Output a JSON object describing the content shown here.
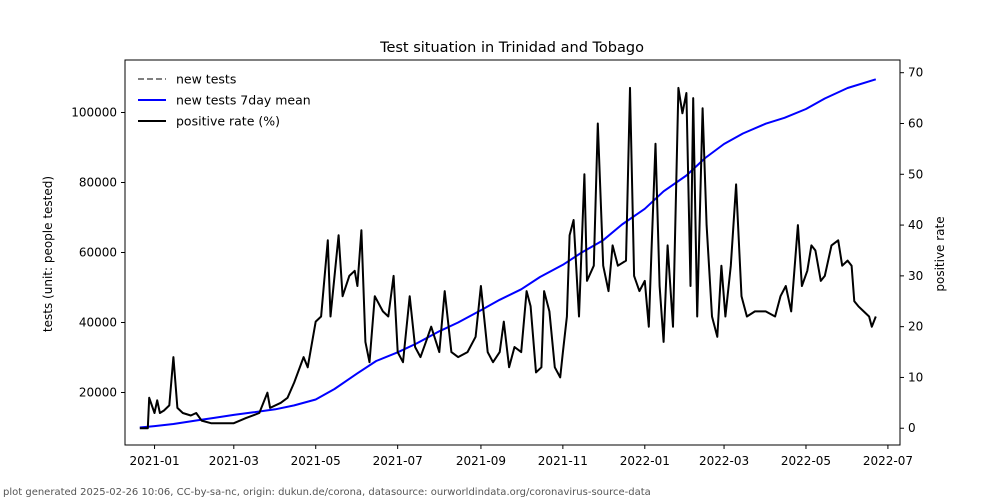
{
  "chart_data": {
    "type": "line",
    "title": "Test situation in Trinidad and Tobago",
    "ylabel_left": "tests (unit: people tested)",
    "ylabel_right": "positive rate",
    "x_ticks": [
      "2021-01",
      "2021-03",
      "2021-05",
      "2021-07",
      "2021-09",
      "2021-11",
      "2022-01",
      "2022-03",
      "2022-05",
      "2022-07"
    ],
    "x_range": [
      "2020-12-10",
      "2022-07-10"
    ],
    "y_left_ticks": [
      20000,
      40000,
      60000,
      80000,
      100000
    ],
    "y_left_range": [
      5000,
      115000
    ],
    "y_right_ticks": [
      0,
      10,
      20,
      30,
      40,
      50,
      60,
      70
    ],
    "y_right_range": [
      -3.3,
      72.5
    ],
    "grid": false,
    "legend_position": "top-left",
    "series": [
      {
        "name": "new tests",
        "axis": "left",
        "style": "dashed",
        "color": "#808080",
        "points": []
      },
      {
        "name": "new tests 7day mean",
        "axis": "left",
        "style": "solid",
        "color": "#0000ff",
        "points": [
          [
            "2020-12-21",
            10000
          ],
          [
            "2021-01-01",
            10400
          ],
          [
            "2021-01-15",
            11000
          ],
          [
            "2021-02-01",
            12000
          ],
          [
            "2021-02-15",
            12800
          ],
          [
            "2021-03-01",
            13600
          ],
          [
            "2021-03-15",
            14300
          ],
          [
            "2021-04-01",
            15200
          ],
          [
            "2021-04-15",
            16300
          ],
          [
            "2021-05-01",
            18000
          ],
          [
            "2021-05-15",
            21000
          ],
          [
            "2021-06-01",
            25500
          ],
          [
            "2021-06-15",
            29000
          ],
          [
            "2021-07-01",
            31500
          ],
          [
            "2021-07-15",
            34000
          ],
          [
            "2021-08-01",
            37500
          ],
          [
            "2021-08-15",
            40000
          ],
          [
            "2021-09-01",
            43500
          ],
          [
            "2021-09-15",
            46500
          ],
          [
            "2021-10-01",
            49500
          ],
          [
            "2021-10-15",
            53000
          ],
          [
            "2021-11-01",
            56500
          ],
          [
            "2021-11-15",
            60000
          ],
          [
            "2021-12-01",
            63500
          ],
          [
            "2021-12-15",
            68000
          ],
          [
            "2022-01-01",
            72500
          ],
          [
            "2022-01-15",
            77500
          ],
          [
            "2022-02-01",
            82000
          ],
          [
            "2022-02-15",
            87000
          ],
          [
            "2022-03-01",
            91000
          ],
          [
            "2022-03-15",
            94000
          ],
          [
            "2022-04-01",
            96800
          ],
          [
            "2022-04-15",
            98500
          ],
          [
            "2022-05-01",
            101000
          ],
          [
            "2022-05-15",
            104000
          ],
          [
            "2022-06-01",
            107000
          ],
          [
            "2022-06-22",
            109500
          ]
        ]
      },
      {
        "name": "positive rate (%)",
        "axis": "right",
        "style": "solid",
        "color": "#000000",
        "points": [
          [
            "2020-12-21",
            0
          ],
          [
            "2020-12-27",
            0
          ],
          [
            "2020-12-28",
            6
          ],
          [
            "2021-01-01",
            3
          ],
          [
            "2021-01-03",
            5.5
          ],
          [
            "2021-01-05",
            3
          ],
          [
            "2021-01-08",
            3.5
          ],
          [
            "2021-01-12",
            4.5
          ],
          [
            "2021-01-15",
            14
          ],
          [
            "2021-01-18",
            4
          ],
          [
            "2021-01-22",
            3
          ],
          [
            "2021-01-28",
            2.5
          ],
          [
            "2021-02-01",
            3
          ],
          [
            "2021-02-05",
            1.5
          ],
          [
            "2021-02-12",
            1
          ],
          [
            "2021-02-20",
            1
          ],
          [
            "2021-03-01",
            1
          ],
          [
            "2021-03-10",
            2
          ],
          [
            "2021-03-20",
            3
          ],
          [
            "2021-03-26",
            7
          ],
          [
            "2021-03-28",
            4
          ],
          [
            "2021-04-05",
            5
          ],
          [
            "2021-04-10",
            6
          ],
          [
            "2021-04-15",
            9
          ],
          [
            "2021-04-22",
            14
          ],
          [
            "2021-04-25",
            12
          ],
          [
            "2021-05-01",
            21
          ],
          [
            "2021-05-05",
            22
          ],
          [
            "2021-05-10",
            37
          ],
          [
            "2021-05-12",
            22
          ],
          [
            "2021-05-18",
            38
          ],
          [
            "2021-05-21",
            26
          ],
          [
            "2021-05-26",
            30
          ],
          [
            "2021-05-30",
            31
          ],
          [
            "2021-06-01",
            28
          ],
          [
            "2021-06-04",
            39
          ],
          [
            "2021-06-07",
            17
          ],
          [
            "2021-06-10",
            13
          ],
          [
            "2021-06-14",
            26
          ],
          [
            "2021-06-20",
            23
          ],
          [
            "2021-06-24",
            22
          ],
          [
            "2021-06-28",
            30
          ],
          [
            "2021-07-01",
            15
          ],
          [
            "2021-07-05",
            13
          ],
          [
            "2021-07-10",
            26
          ],
          [
            "2021-07-14",
            16
          ],
          [
            "2021-07-18",
            14
          ],
          [
            "2021-07-22",
            17
          ],
          [
            "2021-07-26",
            20
          ],
          [
            "2021-08-01",
            15
          ],
          [
            "2021-08-05",
            27
          ],
          [
            "2021-08-10",
            15
          ],
          [
            "2021-08-15",
            14
          ],
          [
            "2021-08-22",
            15
          ],
          [
            "2021-08-28",
            18
          ],
          [
            "2021-09-01",
            28
          ],
          [
            "2021-09-06",
            15
          ],
          [
            "2021-09-10",
            13
          ],
          [
            "2021-09-15",
            15
          ],
          [
            "2021-09-18",
            21
          ],
          [
            "2021-09-22",
            12
          ],
          [
            "2021-09-26",
            16
          ],
          [
            "2021-10-01",
            15
          ],
          [
            "2021-10-05",
            27
          ],
          [
            "2021-10-08",
            24
          ],
          [
            "2021-10-12",
            11
          ],
          [
            "2021-10-16",
            12
          ],
          [
            "2021-10-18",
            27
          ],
          [
            "2021-10-22",
            23
          ],
          [
            "2021-10-26",
            12
          ],
          [
            "2021-10-30",
            10
          ],
          [
            "2021-11-01",
            15
          ],
          [
            "2021-11-04",
            22
          ],
          [
            "2021-11-06",
            38
          ],
          [
            "2021-11-09",
            41
          ],
          [
            "2021-11-13",
            22
          ],
          [
            "2021-11-17",
            50
          ],
          [
            "2021-11-19",
            29
          ],
          [
            "2021-11-24",
            32
          ],
          [
            "2021-11-27",
            60
          ],
          [
            "2021-12-01",
            32
          ],
          [
            "2021-12-05",
            27
          ],
          [
            "2021-12-08",
            36
          ],
          [
            "2021-12-12",
            32
          ],
          [
            "2021-12-18",
            33
          ],
          [
            "2021-12-21",
            67
          ],
          [
            "2021-12-24",
            30
          ],
          [
            "2021-12-28",
            27
          ],
          [
            "2022-01-01",
            29
          ],
          [
            "2022-01-04",
            20
          ],
          [
            "2022-01-06",
            35
          ],
          [
            "2022-01-09",
            56
          ],
          [
            "2022-01-12",
            28
          ],
          [
            "2022-01-15",
            17
          ],
          [
            "2022-01-18",
            36
          ],
          [
            "2022-01-22",
            20
          ],
          [
            "2022-01-26",
            67
          ],
          [
            "2022-01-29",
            62
          ],
          [
            "2022-02-01",
            66
          ],
          [
            "2022-02-04",
            28
          ],
          [
            "2022-02-06",
            65
          ],
          [
            "2022-02-09",
            22
          ],
          [
            "2022-02-13",
            63
          ],
          [
            "2022-02-16",
            40
          ],
          [
            "2022-02-20",
            22
          ],
          [
            "2022-02-24",
            18
          ],
          [
            "2022-02-27",
            32
          ],
          [
            "2022-03-02",
            22
          ],
          [
            "2022-03-06",
            32
          ],
          [
            "2022-03-10",
            48
          ],
          [
            "2022-03-14",
            26
          ],
          [
            "2022-03-18",
            22
          ],
          [
            "2022-03-24",
            23
          ],
          [
            "2022-04-01",
            23
          ],
          [
            "2022-04-08",
            22
          ],
          [
            "2022-04-12",
            26
          ],
          [
            "2022-04-16",
            28
          ],
          [
            "2022-04-20",
            23
          ],
          [
            "2022-04-25",
            40
          ],
          [
            "2022-04-28",
            28
          ],
          [
            "2022-05-02",
            31
          ],
          [
            "2022-05-05",
            36
          ],
          [
            "2022-05-08",
            35
          ],
          [
            "2022-05-12",
            29
          ],
          [
            "2022-05-15",
            30
          ],
          [
            "2022-05-20",
            36
          ],
          [
            "2022-05-25",
            37
          ],
          [
            "2022-05-28",
            32
          ],
          [
            "2022-06-01",
            33
          ],
          [
            "2022-06-04",
            32
          ],
          [
            "2022-06-06",
            25
          ],
          [
            "2022-06-09",
            24
          ],
          [
            "2022-06-13",
            23
          ],
          [
            "2022-06-17",
            22
          ],
          [
            "2022-06-19",
            20
          ],
          [
            "2022-06-22",
            22
          ]
        ]
      }
    ]
  },
  "footer": "plot generated 2025-02-26 10:06, CC-by-sa-nc, origin: dukun.de/corona, datasource: ourworldindata.org/coronavirus-source-data"
}
